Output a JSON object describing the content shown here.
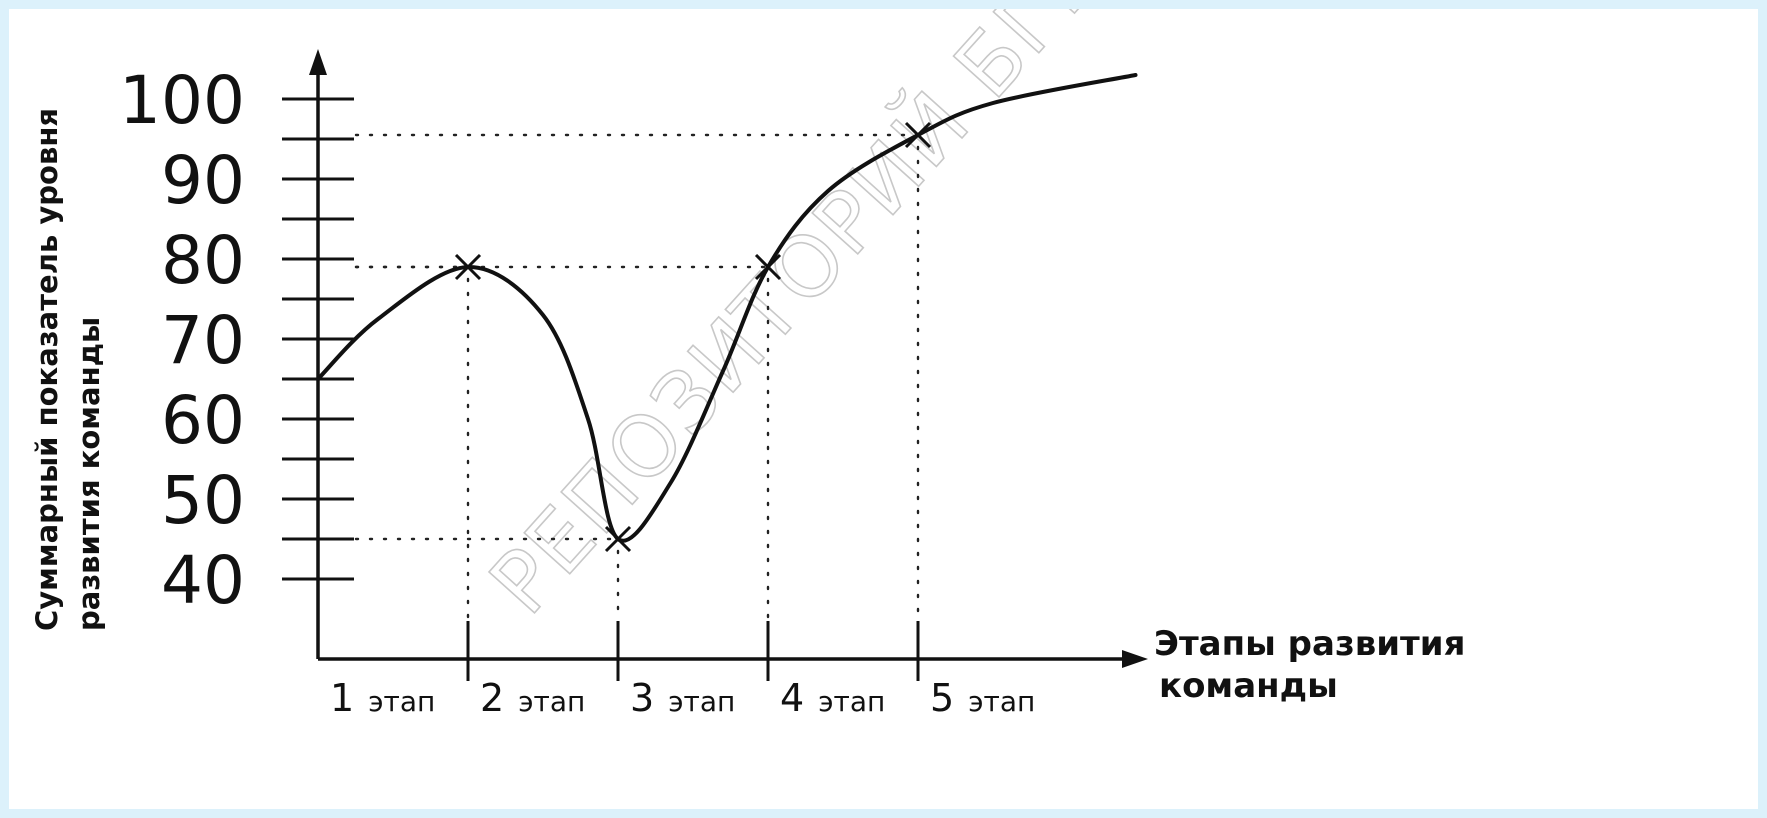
{
  "watermark": "РЕПОЗИТОРИЙ БГПУ",
  "colors": {
    "background": "#dcf1fb",
    "plot_background": "#ffffff",
    "ink": "#111111",
    "watermark": "#c8c8c8"
  },
  "chart_data": {
    "type": "line",
    "title": "",
    "ylabel_lines": [
      "Суммарный показатель уровня",
      "развития команды"
    ],
    "xlabel_lines": [
      "Этапы развития",
      "команды"
    ],
    "y_ticks": [
      40,
      50,
      60,
      70,
      80,
      90,
      100
    ],
    "ylim": [
      30,
      105
    ],
    "x_categories": [
      {
        "num": "1",
        "word": "этап"
      },
      {
        "num": "2",
        "word": "этап"
      },
      {
        "num": "3",
        "word": "этап"
      },
      {
        "num": "4",
        "word": "этап"
      },
      {
        "num": "5",
        "word": "этап"
      }
    ],
    "xlim": [
      0,
      5.6
    ],
    "series": [
      {
        "points": [
          {
            "x": 0,
            "y": 65
          },
          {
            "x": 0.4,
            "y": 72.5
          },
          {
            "x": 1,
            "y": 79
          },
          {
            "x": 1.5,
            "y": 73
          },
          {
            "x": 1.8,
            "y": 60
          },
          {
            "x": 2,
            "y": 45
          },
          {
            "x": 2.35,
            "y": 52
          },
          {
            "x": 2.7,
            "y": 66
          },
          {
            "x": 3,
            "y": 79
          },
          {
            "x": 3.4,
            "y": 88.5
          },
          {
            "x": 4,
            "y": 95.5
          },
          {
            "x": 4.5,
            "y": 99.5
          },
          {
            "x": 5.45,
            "y": 103
          }
        ]
      }
    ],
    "markers": [
      {
        "x": 1,
        "y": 79
      },
      {
        "x": 2,
        "y": 45
      },
      {
        "x": 3,
        "y": 79
      },
      {
        "x": 4,
        "y": 95.5
      }
    ],
    "grid": false,
    "legend": "none"
  }
}
